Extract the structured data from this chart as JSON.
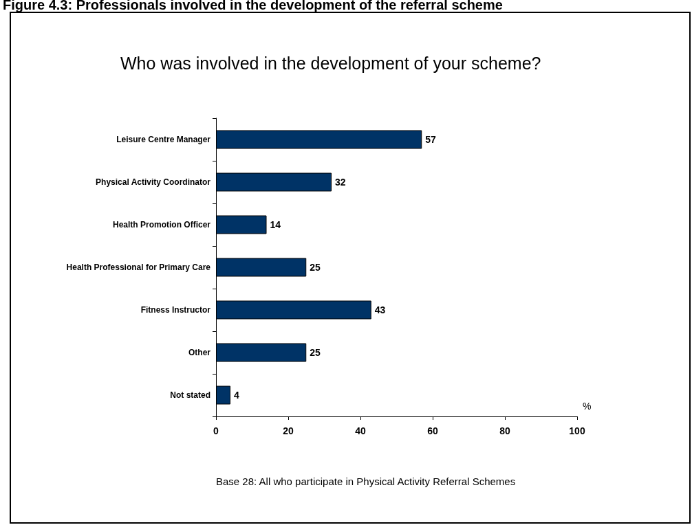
{
  "chart_data": {
    "type": "bar",
    "orientation": "horizontal",
    "title": "Figure 4.3: Professionals involved in the development of the referral scheme",
    "subtitle": "Who was involved in the development of your scheme?",
    "xlabel": "%",
    "categories": [
      "Leisure Centre Manager",
      "Physical Activity Coordinator",
      "Health Promotion Officer",
      "Health Professional for Primary Care",
      "Fitness Instructor",
      "Other",
      "Not stated"
    ],
    "values": [
      57,
      32,
      14,
      25,
      43,
      25,
      4
    ],
    "color": "#003366",
    "xlim": [
      0,
      100
    ],
    "xticks": [
      0,
      20,
      40,
      60,
      80,
      100
    ],
    "data_labels": true,
    "grid": false,
    "annotations": [
      "Base 28: All who participate in Physical Activity Referral Schemes"
    ]
  }
}
